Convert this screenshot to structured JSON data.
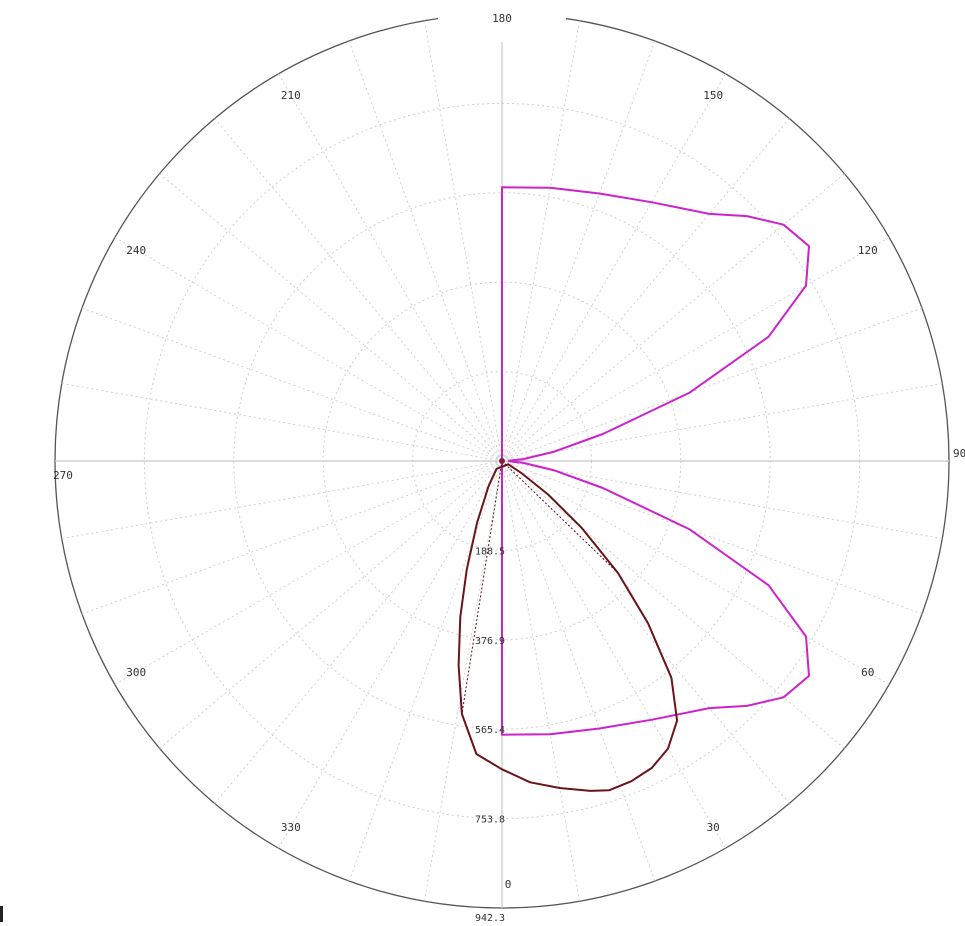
{
  "chart_data": {
    "type": "polar-line",
    "angle_labels": [
      "0",
      "30",
      "60",
      "90",
      "120",
      "150",
      "180",
      "210",
      "240",
      "270",
      "300",
      "330"
    ],
    "radial_ticks": [
      188.5,
      376.9,
      565.4,
      753.8,
      942.3
    ],
    "radial_tick_labels": [
      "188.5",
      "376.9",
      "565.4",
      "753.8",
      "942.3"
    ],
    "rmax": 942.3,
    "grid": true,
    "series": [
      {
        "key": "c0-c180",
        "color": "#cc22cc",
        "points": [
          [
            0,
            577
          ],
          [
            10,
            585
          ],
          [
            20,
            600
          ],
          [
            30,
            630
          ],
          [
            40,
            680
          ],
          [
            45,
            730
          ],
          [
            50,
            775
          ],
          [
            55,
            790
          ],
          [
            60,
            740
          ],
          [
            65,
            620
          ],
          [
            70,
            420
          ],
          [
            75,
            220
          ],
          [
            80,
            110
          ],
          [
            85,
            45
          ],
          [
            88,
            15
          ],
          [
            92,
            15
          ],
          [
            95,
            45
          ],
          [
            100,
            110
          ],
          [
            105,
            220
          ],
          [
            110,
            420
          ],
          [
            115,
            620
          ],
          [
            120,
            740
          ],
          [
            125,
            790
          ],
          [
            130,
            775
          ],
          [
            135,
            730
          ],
          [
            140,
            680
          ],
          [
            150,
            630
          ],
          [
            160,
            600
          ],
          [
            170,
            585
          ],
          [
            180,
            577
          ]
        ]
      },
      {
        "key": "c90-c270",
        "color": "#6b1418",
        "points": [
          [
            -35,
            20
          ],
          [
            -28,
            60
          ],
          [
            -22,
            140
          ],
          [
            -18,
            240
          ],
          [
            -15,
            340
          ],
          [
            -12,
            440
          ],
          [
            -9,
            540
          ],
          [
            -5,
            620
          ],
          [
            0,
            650
          ],
          [
            5,
            680
          ],
          [
            10,
            700
          ],
          [
            15,
            720
          ],
          [
            18,
            730
          ],
          [
            22,
            728
          ],
          [
            26,
            720
          ],
          [
            30,
            700
          ],
          [
            34,
            660
          ],
          [
            38,
            580
          ],
          [
            42,
            460
          ],
          [
            46,
            340
          ],
          [
            50,
            220
          ],
          [
            54,
            120
          ],
          [
            58,
            50
          ],
          [
            62,
            15
          ]
        ]
      }
    ]
  }
}
